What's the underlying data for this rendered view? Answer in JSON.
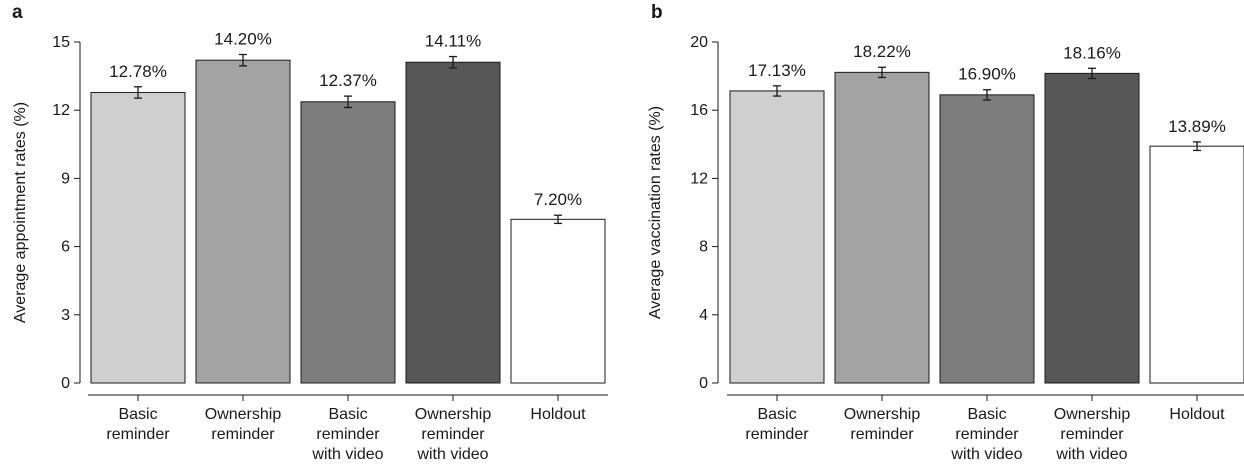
{
  "chart_data": [
    {
      "panel": "a",
      "type": "bar",
      "categories": [
        [
          "Basic",
          "reminder"
        ],
        [
          "Ownership",
          "reminder"
        ],
        [
          "Basic",
          "reminder",
          "with video"
        ],
        [
          "Ownership",
          "reminder",
          "with video"
        ],
        [
          "Holdout"
        ]
      ],
      "values": [
        12.78,
        14.2,
        12.37,
        14.11,
        7.2
      ],
      "error": [
        0.25,
        0.25,
        0.25,
        0.25,
        0.18
      ],
      "labels": [
        "12.78%",
        "14.20%",
        "12.37%",
        "14.11%",
        "7.20%"
      ],
      "colors": [
        "#cfcfcf",
        "#a3a3a3",
        "#7d7d7d",
        "#575757",
        "#ffffff"
      ],
      "ylabel": "Average appointment rates (%)",
      "xlabel": "",
      "yticks": [
        0,
        3,
        6,
        9,
        12,
        15
      ],
      "ylim": [
        0,
        15
      ],
      "grid": false
    },
    {
      "panel": "b",
      "type": "bar",
      "categories": [
        [
          "Basic",
          "reminder"
        ],
        [
          "Ownership",
          "reminder"
        ],
        [
          "Basic",
          "reminder",
          "with video"
        ],
        [
          "Ownership",
          "reminder",
          "with video"
        ],
        [
          "Holdout"
        ]
      ],
      "values": [
        17.13,
        18.22,
        16.9,
        18.16,
        13.89
      ],
      "error": [
        0.3,
        0.3,
        0.3,
        0.3,
        0.25
      ],
      "labels": [
        "17.13%",
        "18.22%",
        "16.90%",
        "18.16%",
        "13.89%"
      ],
      "colors": [
        "#cfcfcf",
        "#a3a3a3",
        "#7d7d7d",
        "#575757",
        "#ffffff"
      ],
      "ylabel": "Average vaccination rates (%)",
      "xlabel": "",
      "yticks": [
        0,
        4,
        8,
        12,
        16,
        20
      ],
      "ylim": [
        0,
        20
      ],
      "grid": false
    }
  ]
}
